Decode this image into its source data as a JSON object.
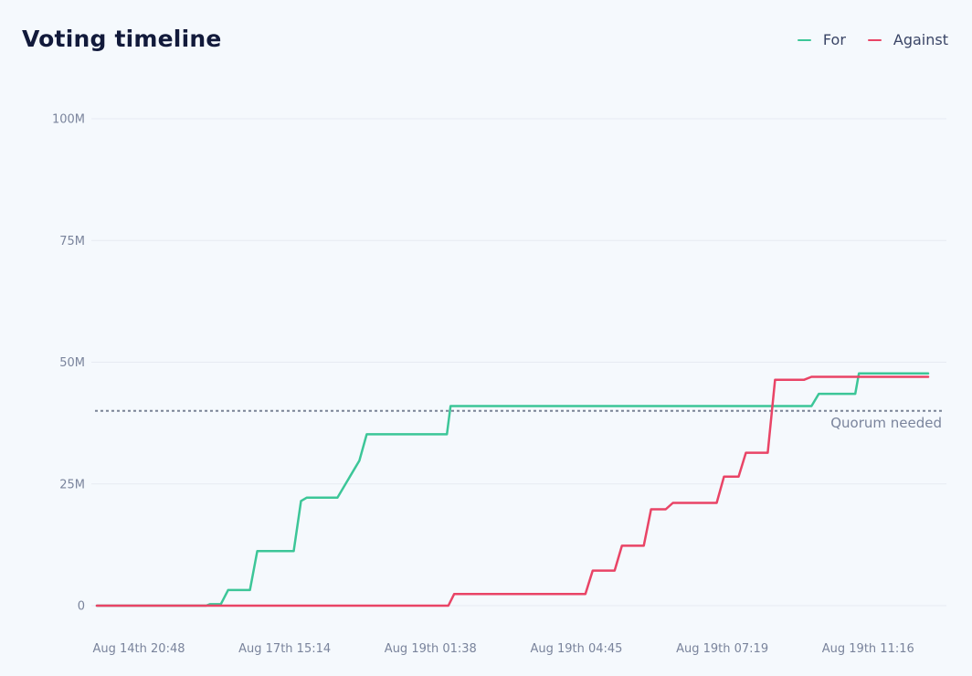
{
  "header": {
    "title": "Voting timeline"
  },
  "colors": {
    "for": "#3cc698",
    "against": "#e94466",
    "quorum": "#7b8496",
    "grid": "#e6ebf2"
  },
  "chart_data": {
    "type": "line",
    "title": "Voting timeline",
    "xlabel": "",
    "ylabel": "",
    "ylim": [
      0,
      100000000
    ],
    "y_ticks": [
      {
        "value": 0,
        "label": "0"
      },
      {
        "value": 25000000,
        "label": "25M"
      },
      {
        "value": 50000000,
        "label": "50M"
      },
      {
        "value": 75000000,
        "label": "75M"
      },
      {
        "value": 100000000,
        "label": "100M"
      }
    ],
    "x_ticks": [
      {
        "index": 0,
        "label": "Aug 14th 20:48"
      },
      {
        "index": 20,
        "label": "Aug 17th 15:14"
      },
      {
        "index": 40,
        "label": "Aug 19th 01:38"
      },
      {
        "index": 60,
        "label": "Aug 19th 04:45"
      },
      {
        "index": 80,
        "label": "Aug 19th 07:19"
      },
      {
        "index": 100,
        "label": "Aug 19th 11:16"
      }
    ],
    "legend_position": "top-right",
    "grid": true,
    "series": [
      {
        "name": "For",
        "points": [
          [
            0,
            0
          ],
          [
            15,
            0
          ],
          [
            15.5,
            300000
          ],
          [
            17,
            300000
          ],
          [
            18,
            3200000
          ],
          [
            21,
            3200000
          ],
          [
            22,
            11200000
          ],
          [
            27,
            11200000
          ],
          [
            28,
            21500000
          ],
          [
            28.8,
            22200000
          ],
          [
            33,
            22200000
          ],
          [
            36,
            29800000
          ],
          [
            37,
            35200000
          ],
          [
            48,
            35200000
          ],
          [
            48.5,
            41000000
          ],
          [
            98,
            41000000
          ],
          [
            99,
            43500000
          ],
          [
            104,
            43500000
          ],
          [
            104.5,
            47700000
          ],
          [
            114,
            47700000
          ]
        ]
      },
      {
        "name": "Against",
        "points": [
          [
            0,
            0
          ],
          [
            48.2,
            0
          ],
          [
            49,
            2400000
          ],
          [
            67,
            2400000
          ],
          [
            68,
            7200000
          ],
          [
            71,
            7200000
          ],
          [
            72,
            12300000
          ],
          [
            75,
            12300000
          ],
          [
            76,
            19800000
          ],
          [
            78,
            19800000
          ],
          [
            79,
            21100000
          ],
          [
            85,
            21100000
          ],
          [
            86,
            26500000
          ],
          [
            88,
            26500000
          ],
          [
            89,
            31400000
          ],
          [
            92,
            31400000
          ],
          [
            93,
            46400000
          ],
          [
            97,
            46400000
          ],
          [
            98,
            47000000
          ],
          [
            114,
            47000000
          ]
        ]
      }
    ],
    "annotations": [
      {
        "type": "hline",
        "y": 40000000,
        "label": "Quorum needed"
      }
    ]
  }
}
